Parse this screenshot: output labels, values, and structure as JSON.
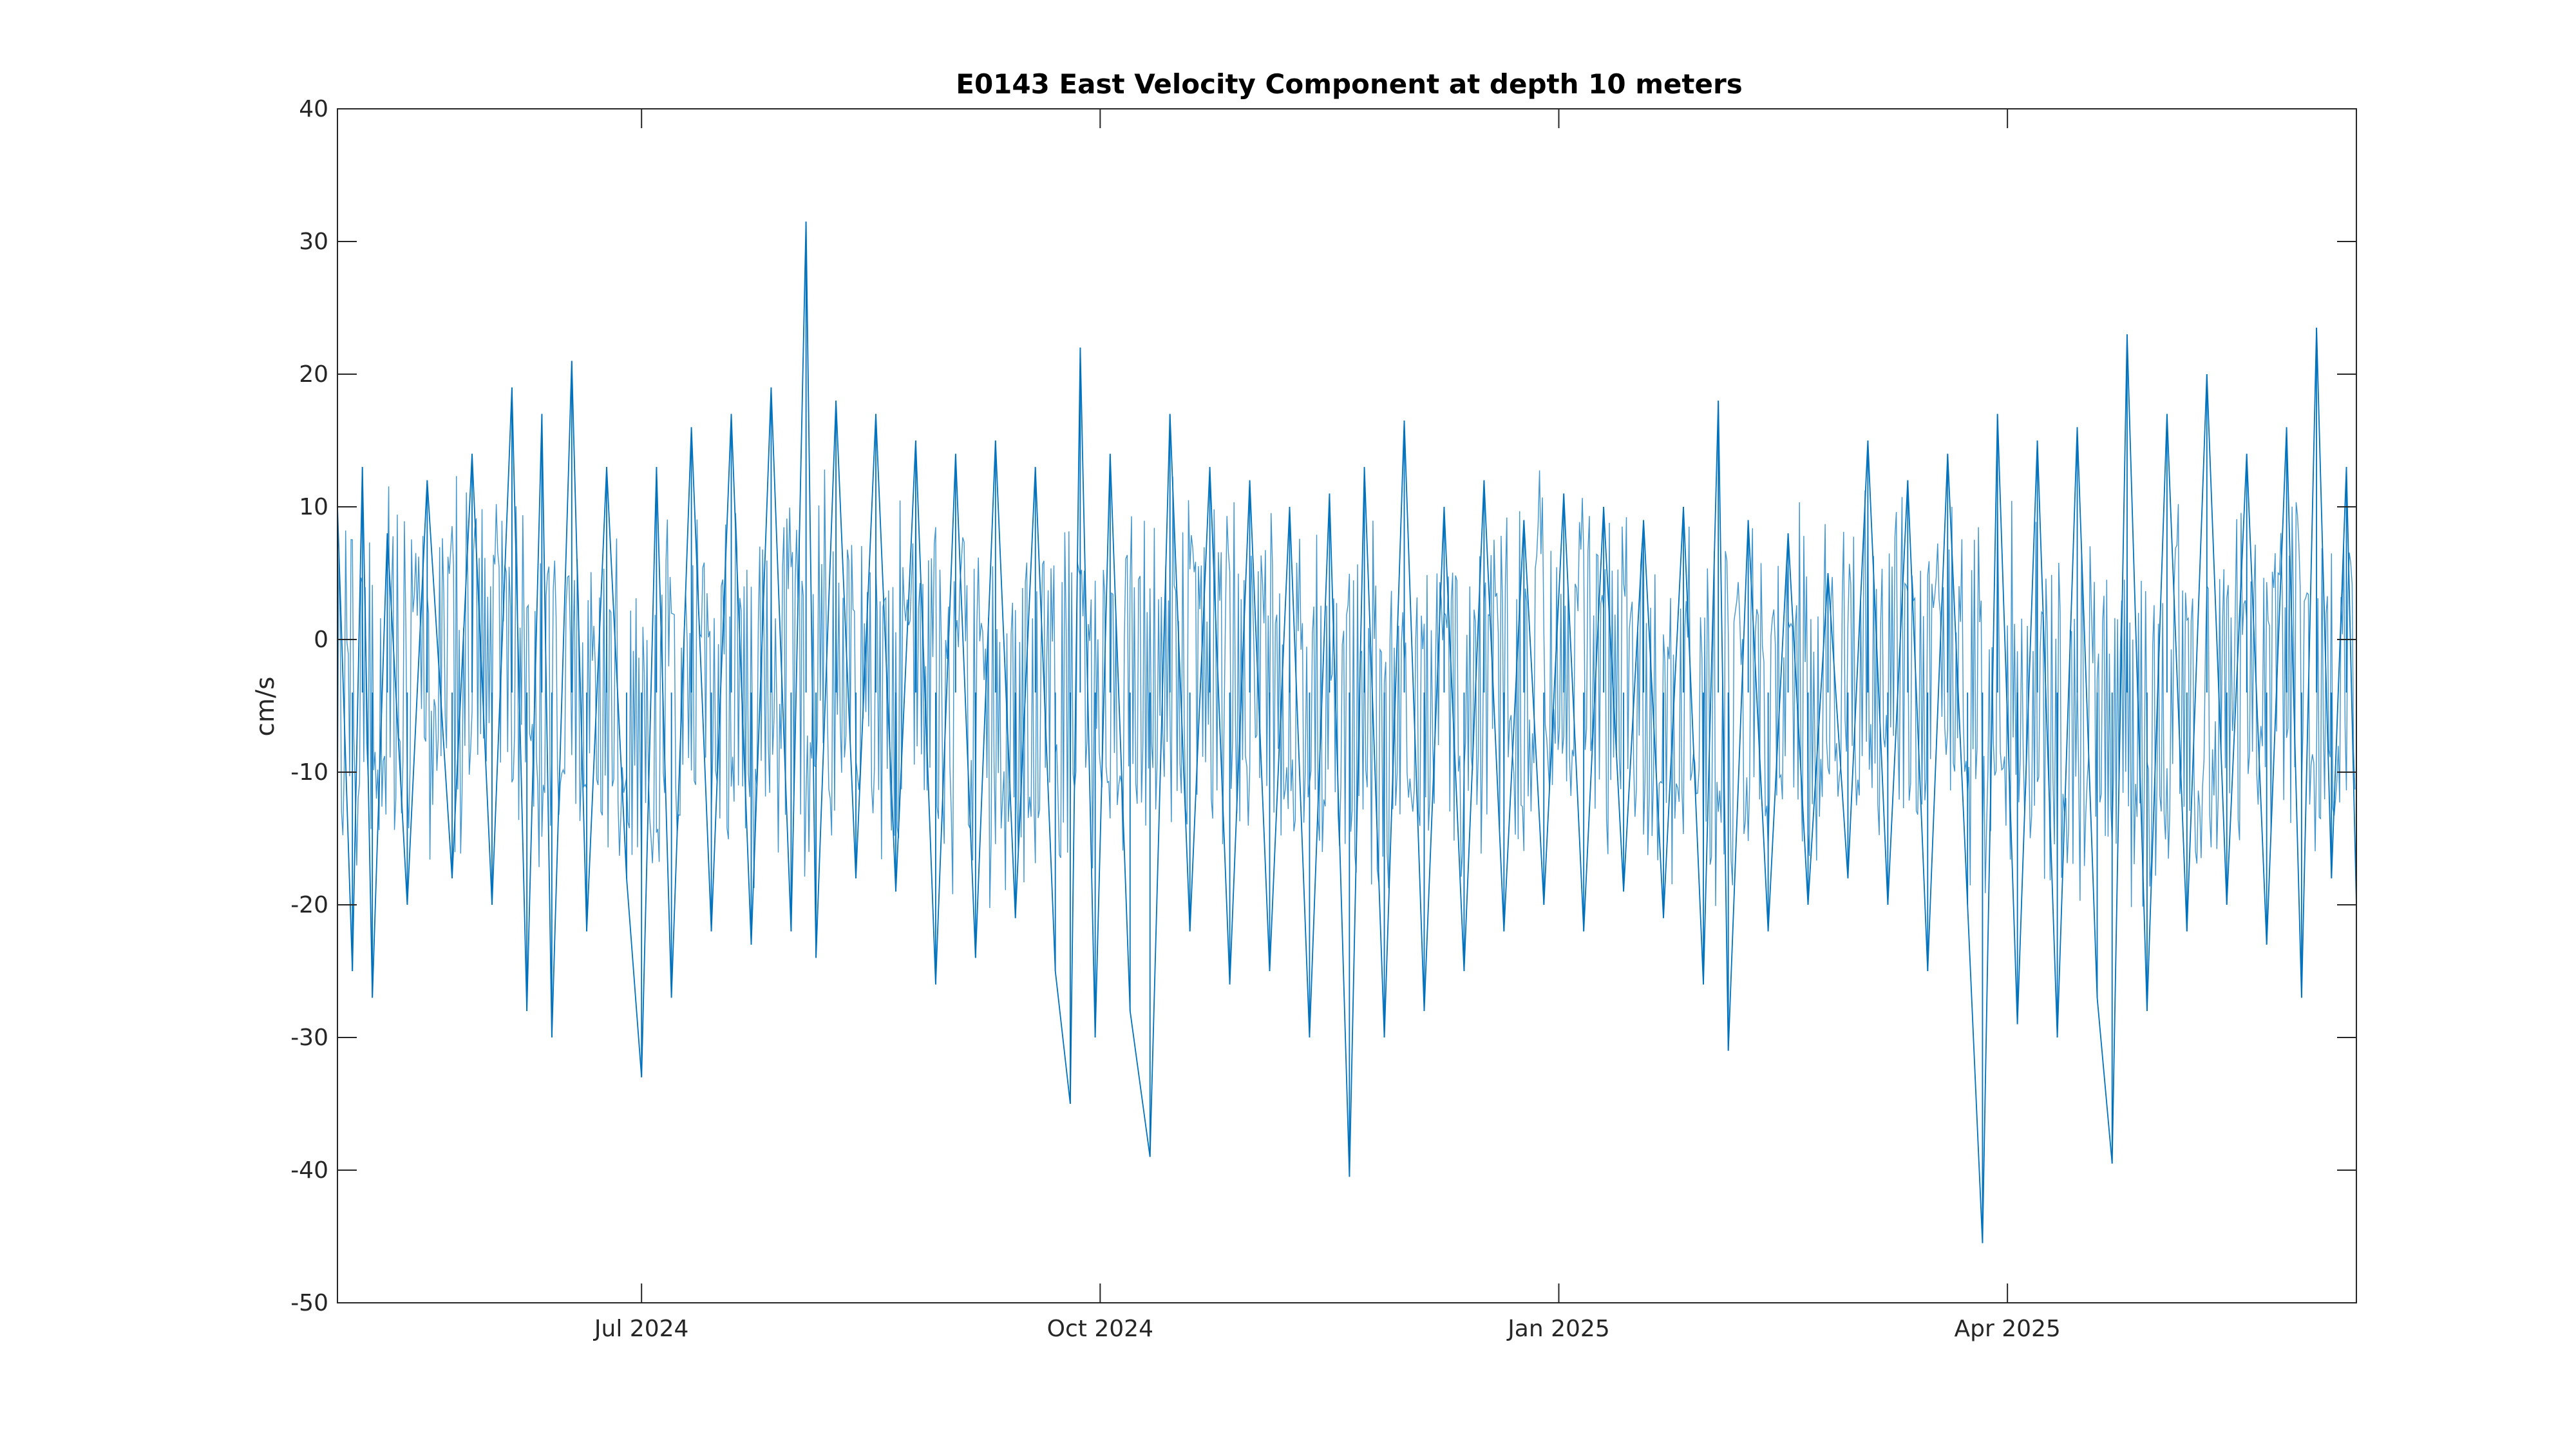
{
  "chart_data": {
    "type": "line",
    "title": "E0143 East Velocity Component at depth 10 meters",
    "xlabel": "",
    "ylabel": "cm/s",
    "x_range": [
      "2024-05-01",
      "2025-06-10"
    ],
    "ylim": [
      -50,
      40
    ],
    "yticks": [
      40,
      30,
      20,
      10,
      0,
      -10,
      -20,
      -30,
      -40,
      -50
    ],
    "xticks": [
      {
        "date": "2024-07-01",
        "label": "Jul 2024"
      },
      {
        "date": "2024-10-01",
        "label": "Oct 2024"
      },
      {
        "date": "2025-01-01",
        "label": "Jan 2025"
      },
      {
        "date": "2025-04-01",
        "label": "Apr 2025"
      }
    ],
    "grid": false,
    "line_color": "#0072BD",
    "series": [
      {
        "name": "",
        "points": [
          {
            "x": "2024-05-01",
            "y": 10
          },
          {
            "x": "2024-05-04",
            "y": -25
          },
          {
            "x": "2024-05-06",
            "y": 13
          },
          {
            "x": "2024-05-08",
            "y": -27
          },
          {
            "x": "2024-05-11",
            "y": 8
          },
          {
            "x": "2024-05-15",
            "y": -20
          },
          {
            "x": "2024-05-19",
            "y": 12
          },
          {
            "x": "2024-05-24",
            "y": -18
          },
          {
            "x": "2024-05-28",
            "y": 14
          },
          {
            "x": "2024-06-01",
            "y": -20
          },
          {
            "x": "2024-06-05",
            "y": 19
          },
          {
            "x": "2024-06-08",
            "y": -28
          },
          {
            "x": "2024-06-11",
            "y": 17
          },
          {
            "x": "2024-06-13",
            "y": -30
          },
          {
            "x": "2024-06-17",
            "y": 21
          },
          {
            "x": "2024-06-20",
            "y": -22
          },
          {
            "x": "2024-06-24",
            "y": 13
          },
          {
            "x": "2024-06-28",
            "y": -18
          },
          {
            "x": "2024-07-01",
            "y": -33
          },
          {
            "x": "2024-07-04",
            "y": 13
          },
          {
            "x": "2024-07-07",
            "y": -27
          },
          {
            "x": "2024-07-11",
            "y": 16
          },
          {
            "x": "2024-07-15",
            "y": -22
          },
          {
            "x": "2024-07-19",
            "y": 17
          },
          {
            "x": "2024-07-23",
            "y": -23
          },
          {
            "x": "2024-07-27",
            "y": 19
          },
          {
            "x": "2024-07-31",
            "y": -22
          },
          {
            "x": "2024-08-03",
            "y": 31.5
          },
          {
            "x": "2024-08-05",
            "y": -24
          },
          {
            "x": "2024-08-09",
            "y": 18
          },
          {
            "x": "2024-08-13",
            "y": -18
          },
          {
            "x": "2024-08-17",
            "y": 17
          },
          {
            "x": "2024-08-21",
            "y": -19
          },
          {
            "x": "2024-08-25",
            "y": 15
          },
          {
            "x": "2024-08-29",
            "y": -26
          },
          {
            "x": "2024-09-02",
            "y": 14
          },
          {
            "x": "2024-09-06",
            "y": -24
          },
          {
            "x": "2024-09-10",
            "y": 15
          },
          {
            "x": "2024-09-14",
            "y": -21
          },
          {
            "x": "2024-09-18",
            "y": 13
          },
          {
            "x": "2024-09-22",
            "y": -25
          },
          {
            "x": "2024-09-25",
            "y": -35
          },
          {
            "x": "2024-09-27",
            "y": 22
          },
          {
            "x": "2024-09-30",
            "y": -30
          },
          {
            "x": "2024-10-03",
            "y": 14
          },
          {
            "x": "2024-10-07",
            "y": -28
          },
          {
            "x": "2024-10-11",
            "y": -39
          },
          {
            "x": "2024-10-15",
            "y": 17
          },
          {
            "x": "2024-10-19",
            "y": -22
          },
          {
            "x": "2024-10-23",
            "y": 13
          },
          {
            "x": "2024-10-27",
            "y": -26
          },
          {
            "x": "2024-10-31",
            "y": 12
          },
          {
            "x": "2024-11-04",
            "y": -25
          },
          {
            "x": "2024-11-08",
            "y": 10
          },
          {
            "x": "2024-11-12",
            "y": -30
          },
          {
            "x": "2024-11-16",
            "y": 11
          },
          {
            "x": "2024-11-20",
            "y": -40.5
          },
          {
            "x": "2024-11-23",
            "y": 13
          },
          {
            "x": "2024-11-27",
            "y": -30
          },
          {
            "x": "2024-12-01",
            "y": 16.5
          },
          {
            "x": "2024-12-05",
            "y": -28
          },
          {
            "x": "2024-12-09",
            "y": 10
          },
          {
            "x": "2024-12-13",
            "y": -25
          },
          {
            "x": "2024-12-17",
            "y": 12
          },
          {
            "x": "2024-12-21",
            "y": -22
          },
          {
            "x": "2024-12-25",
            "y": 9
          },
          {
            "x": "2024-12-29",
            "y": -20
          },
          {
            "x": "2025-01-02",
            "y": 11
          },
          {
            "x": "2025-01-06",
            "y": -22
          },
          {
            "x": "2025-01-10",
            "y": 10
          },
          {
            "x": "2025-01-14",
            "y": -19
          },
          {
            "x": "2025-01-18",
            "y": 9
          },
          {
            "x": "2025-01-22",
            "y": -21
          },
          {
            "x": "2025-01-26",
            "y": 10
          },
          {
            "x": "2025-01-30",
            "y": -26
          },
          {
            "x": "2025-02-02",
            "y": 18
          },
          {
            "x": "2025-02-04",
            "y": -31
          },
          {
            "x": "2025-02-08",
            "y": 9
          },
          {
            "x": "2025-02-12",
            "y": -22
          },
          {
            "x": "2025-02-16",
            "y": 8
          },
          {
            "x": "2025-02-20",
            "y": -20
          },
          {
            "x": "2025-02-24",
            "y": 5
          },
          {
            "x": "2025-02-28",
            "y": -18
          },
          {
            "x": "2025-03-04",
            "y": 15
          },
          {
            "x": "2025-03-08",
            "y": -20
          },
          {
            "x": "2025-03-12",
            "y": 12
          },
          {
            "x": "2025-03-16",
            "y": -25
          },
          {
            "x": "2025-03-20",
            "y": 14
          },
          {
            "x": "2025-03-24",
            "y": -20
          },
          {
            "x": "2025-03-27",
            "y": -45.5
          },
          {
            "x": "2025-03-30",
            "y": 17
          },
          {
            "x": "2025-04-03",
            "y": -29
          },
          {
            "x": "2025-04-07",
            "y": 15
          },
          {
            "x": "2025-04-11",
            "y": -30
          },
          {
            "x": "2025-04-15",
            "y": 16
          },
          {
            "x": "2025-04-19",
            "y": -27
          },
          {
            "x": "2025-04-22",
            "y": -39.5
          },
          {
            "x": "2025-04-25",
            "y": 23
          },
          {
            "x": "2025-04-29",
            "y": -28
          },
          {
            "x": "2025-05-03",
            "y": 17
          },
          {
            "x": "2025-05-07",
            "y": -22
          },
          {
            "x": "2025-05-11",
            "y": 20
          },
          {
            "x": "2025-05-15",
            "y": -20
          },
          {
            "x": "2025-05-19",
            "y": 14
          },
          {
            "x": "2025-05-23",
            "y": -23
          },
          {
            "x": "2025-05-27",
            "y": 16
          },
          {
            "x": "2025-05-30",
            "y": -27
          },
          {
            "x": "2025-06-02",
            "y": 23.5
          },
          {
            "x": "2025-06-05",
            "y": -18
          },
          {
            "x": "2025-06-08",
            "y": 13
          },
          {
            "x": "2025-06-10",
            "y": -20
          }
        ]
      }
    ]
  }
}
